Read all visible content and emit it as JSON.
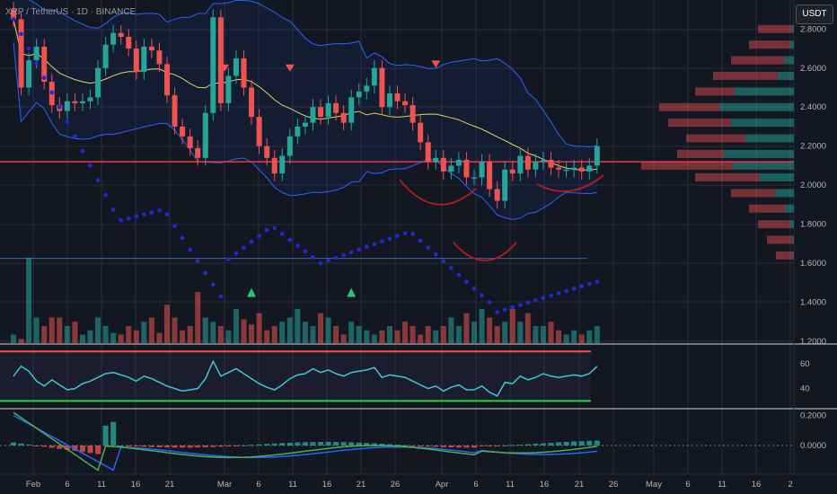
{
  "header": {
    "title": "XRP / TetherUS · 1D · BINANCE",
    "currency_badge": "USDT"
  },
  "colors": {
    "background": "#131722",
    "grid": "#2a2e39",
    "up": "#26a69a",
    "down": "#ef5350",
    "bollinger": "#2962ff",
    "ma": "#e6d35b",
    "psar": "#1e2ad6",
    "rsi": "#3cc8d3",
    "support_line": "#f23645",
    "arc": "#b71c1c"
  },
  "chart_data": [
    {
      "type": "candlestick",
      "pair": "XRP / TetherUS",
      "interval": "1D",
      "exchange": "BINANCE",
      "y_ticks": [
        "2.8000",
        "2.6000",
        "2.4000",
        "2.2000",
        "2.0000",
        "1.8000",
        "1.6000",
        "1.4000",
        "1.2000"
      ],
      "ylim": [
        1.2,
        2.85
      ],
      "x_ticks": [
        "Feb",
        "6",
        "11",
        "16",
        "21",
        "Mar",
        "6",
        "11",
        "16",
        "21",
        "26",
        "Apr",
        "6",
        "11",
        "16",
        "21",
        "26",
        "May",
        "6",
        "11",
        "16",
        "2"
      ],
      "horizontal_line": 2.12,
      "closes": [
        2.85,
        2.5,
        2.64,
        2.71,
        2.53,
        2.41,
        2.38,
        2.43,
        2.42,
        2.43,
        2.45,
        2.6,
        2.72,
        2.78,
        2.76,
        2.7,
        2.58,
        2.71,
        2.69,
        2.62,
        2.46,
        2.3,
        2.25,
        2.19,
        2.14,
        2.37,
        2.86,
        2.42,
        2.56,
        2.65,
        2.5,
        2.35,
        2.2,
        2.14,
        2.06,
        2.15,
        2.25,
        2.3,
        2.32,
        2.4,
        2.35,
        2.42,
        2.37,
        2.32,
        2.45,
        2.48,
        2.51,
        2.6,
        2.4,
        2.47,
        2.43,
        2.41,
        2.32,
        2.22,
        2.12,
        2.14,
        2.07,
        2.1,
        2.13,
        2.04,
        2.04,
        2.12,
        1.98,
        1.92,
        2.08,
        2.06,
        2.15,
        2.08,
        2.12,
        2.13,
        2.09,
        2.08,
        2.08,
        2.09,
        2.07,
        2.1,
        2.2
      ]
    },
    {
      "type": "volume",
      "bars": [
        0.1,
        0.05,
        1.0,
        0.3,
        0.2,
        0.3,
        0.3,
        0.2,
        0.25,
        0.1,
        0.15,
        0.3,
        0.2,
        0.12,
        0.1,
        0.2,
        0.15,
        0.25,
        0.3,
        0.12,
        0.45,
        0.3,
        0.15,
        0.2,
        0.6,
        0.3,
        0.25,
        0.2,
        0.15,
        0.4,
        0.28,
        0.22,
        0.35,
        0.15,
        0.2,
        0.25,
        0.3,
        0.4,
        0.25,
        0.2,
        0.35,
        0.3,
        0.2,
        0.1,
        0.25,
        0.2,
        0.15,
        0.1,
        0.15,
        0.2,
        0.15,
        0.25,
        0.2,
        0.1,
        0.2,
        0.15,
        0.2,
        0.3,
        0.2,
        0.35,
        0.25,
        0.4,
        0.3,
        0.2,
        0.25,
        0.4,
        0.25,
        0.35,
        0.2,
        0.2,
        0.25,
        0.15,
        0.1,
        0.15,
        0.1,
        0.15,
        0.2
      ]
    },
    {
      "type": "line",
      "name": "RSI",
      "y_ticks": [
        "60",
        "40"
      ],
      "ylim": [
        20,
        70
      ],
      "values": [
        50,
        58,
        54,
        46,
        42,
        47,
        43,
        39,
        40,
        44,
        46,
        49,
        52,
        53,
        51,
        49,
        46,
        50,
        48,
        45,
        42,
        40,
        38,
        39,
        40,
        48,
        62,
        50,
        53,
        56,
        52,
        48,
        44,
        41,
        39,
        43,
        48,
        51,
        52,
        56,
        53,
        55,
        52,
        50,
        53,
        54,
        55,
        57,
        49,
        51,
        50,
        49,
        46,
        43,
        40,
        42,
        38,
        41,
        43,
        39,
        39,
        42,
        37,
        34,
        45,
        44,
        50,
        47,
        49,
        52,
        50,
        49,
        50,
        51,
        50,
        52,
        58
      ]
    },
    {
      "type": "line",
      "name": "MACD",
      "y_ticks": [
        "0.2000",
        "0.0000"
      ],
      "ylim": [
        -0.12,
        0.24
      ]
    }
  ]
}
